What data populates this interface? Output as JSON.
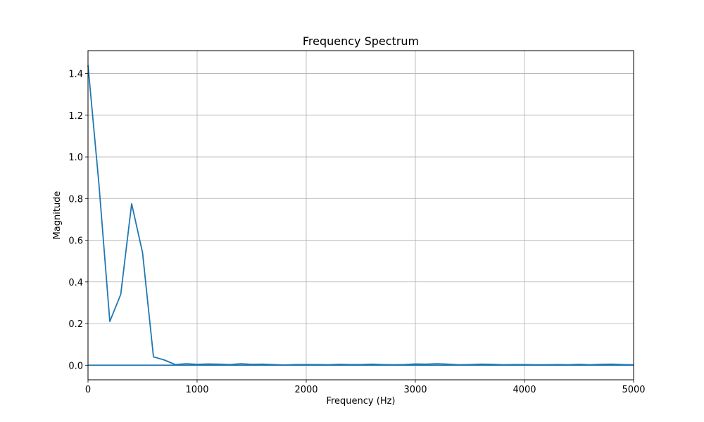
{
  "chart_data": {
    "type": "line",
    "title": "Frequency Spectrum",
    "xlabel": "Frequency (Hz)",
    "ylabel": "Magnitude",
    "xlim": [
      0,
      5000
    ],
    "ylim": [
      -0.07,
      1.51
    ],
    "xticks": [
      0,
      1000,
      2000,
      3000,
      4000,
      5000
    ],
    "yticks": [
      0.0,
      0.2,
      0.4,
      0.6,
      0.8,
      1.0,
      1.2,
      1.4
    ],
    "ytick_labels": [
      "0.0",
      "0.2",
      "0.4",
      "0.6",
      "0.8",
      "1.0",
      "1.2",
      "1.4"
    ],
    "grid": true,
    "series": [
      {
        "color": "#1f77b4",
        "x": [
          0,
          100,
          200,
          300,
          400,
          500,
          600,
          700,
          800,
          900,
          1000,
          1100,
          1200,
          1300,
          1400,
          1500,
          1600,
          1700,
          1800,
          1900,
          2000,
          2100,
          2200,
          2300,
          2400,
          2500,
          2600,
          2700,
          2800,
          2900,
          3000,
          3100,
          3200,
          3300,
          3400,
          3500,
          3600,
          3700,
          3800,
          3900,
          4000,
          4100,
          4200,
          4300,
          4400,
          4500,
          4600,
          4700,
          4800,
          4900,
          5000
        ],
        "y": [
          1.44,
          0.87,
          0.21,
          0.34,
          0.775,
          0.54,
          0.04,
          0.025,
          0.003,
          0.007,
          0.004,
          0.006,
          0.005,
          0.003,
          0.007,
          0.004,
          0.005,
          0.003,
          0.001,
          0.003,
          0.003,
          0.003,
          0.002,
          0.004,
          0.003,
          0.003,
          0.005,
          0.003,
          0.002,
          0.003,
          0.006,
          0.005,
          0.007,
          0.005,
          0.002,
          0.003,
          0.005,
          0.004,
          0.002,
          0.003,
          0.003,
          0.002,
          0.002,
          0.003,
          0.002,
          0.004,
          0.002,
          0.004,
          0.005,
          0.003,
          0.002
        ]
      },
      {
        "color": "#1f77b4",
        "x": [
          0,
          5000
        ],
        "y": [
          0.0,
          0.0
        ]
      }
    ]
  }
}
